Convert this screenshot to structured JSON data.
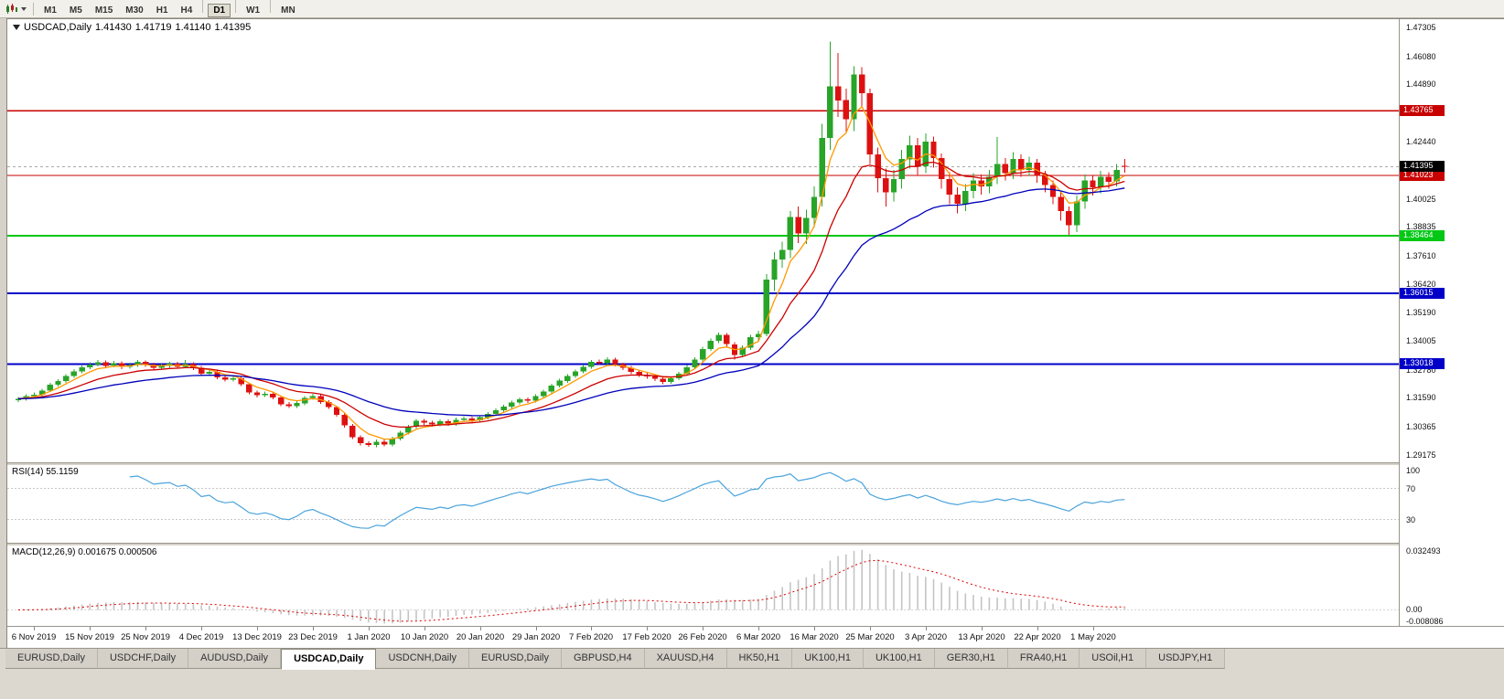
{
  "toolbar": {
    "timeframes": [
      {
        "label": "M1",
        "active": false
      },
      {
        "label": "M5",
        "active": false
      },
      {
        "label": "M15",
        "active": false
      },
      {
        "label": "M30",
        "active": false
      },
      {
        "label": "H1",
        "active": false
      },
      {
        "label": "H4",
        "active": false
      },
      {
        "label": "D1",
        "active": true
      },
      {
        "label": "W1",
        "active": false
      },
      {
        "label": "MN",
        "active": false
      }
    ]
  },
  "chart_header": {
    "symbol": "USDCAD,Daily",
    "open": "1.41430",
    "high": "1.41719",
    "low": "1.41140",
    "close": "1.41395"
  },
  "colors": {
    "bull": "#28a428",
    "bear": "#dd1111",
    "rsi": "#4aa3dc",
    "macd_hist": "#c4c4c4",
    "macd_signal": "#dd0000",
    "current_line": "#aaaaaa"
  },
  "price_axis": {
    "ticks": [
      "1.47305",
      "1.46080",
      "1.44890",
      "1.42440",
      "1.40025",
      "1.38835",
      "1.37610",
      "1.36420",
      "1.35190",
      "1.34005",
      "1.32780",
      "1.31590",
      "1.30365",
      "1.29175"
    ]
  },
  "hlines": [
    {
      "price": 1.43765,
      "label": "1.43765",
      "color": "#c80000",
      "thickness": 1.4
    },
    {
      "price": 1.41023,
      "label": "1.41023",
      "color": "#c80000",
      "thickness": 1.4
    },
    {
      "price": 1.38464,
      "label": "1.38464",
      "color": "#00c814",
      "thickness": 2
    },
    {
      "price": 1.36015,
      "label": "1.36015",
      "color": "#0000c8",
      "thickness": 2
    },
    {
      "price": 1.33018,
      "label": "1.33018",
      "color": "#0000c8",
      "thickness": 2
    }
  ],
  "current_price": {
    "value": 1.41395,
    "label": "1.41395",
    "badge_color": "#000000"
  },
  "chart_data": {
    "type": "candlestick",
    "symbol": "USDCAD",
    "timeframe": "Daily",
    "y_range": [
      1.2885,
      1.4765
    ],
    "x_tick_labels": [
      "6 Nov 2019",
      "15 Nov 2019",
      "25 Nov 2019",
      "4 Dec 2019",
      "13 Dec 2019",
      "23 Dec 2019",
      "1 Jan 2020",
      "10 Jan 2020",
      "20 Jan 2020",
      "29 Jan 2020",
      "7 Feb 2020",
      "17 Feb 2020",
      "26 Feb 2020",
      "6 Mar 2020",
      "16 Mar 2020",
      "25 Mar 2020",
      "3 Apr 2020",
      "13 Apr 2020",
      "22 Apr 2020",
      "1 May 2020"
    ],
    "x_tick_bar_indices": [
      2,
      9,
      16,
      23,
      30,
      37,
      44,
      51,
      58,
      65,
      72,
      79,
      86,
      93,
      100,
      107,
      114,
      121,
      128,
      135
    ],
    "moving_averages": [
      {
        "name": "fast",
        "type": "ema",
        "period": 5,
        "color": "#ff9900"
      },
      {
        "name": "medium",
        "type": "ema",
        "period": 13,
        "color": "#cc0000"
      },
      {
        "name": "slow",
        "type": "ema",
        "period": 30,
        "color": "#0000bb"
      }
    ],
    "indicators": [
      {
        "name": "RSI",
        "label": "RSI(14) 55.1159",
        "value": 55.1159,
        "period": 14,
        "range": [
          0,
          100
        ],
        "levels": [
          70,
          30
        ],
        "axis_labels": [
          "100",
          "70",
          "30"
        ]
      },
      {
        "name": "MACD",
        "label": "MACD(12,26,9) 0.001675 0.000506",
        "values": [
          0.001675,
          0.000506
        ],
        "params": [
          12,
          26,
          9
        ],
        "range": [
          -0.008086,
          0.032493
        ],
        "axis_labels": [
          "0.032493",
          "0.00",
          "-0.008086"
        ]
      }
    ],
    "candles": [
      [
        1.3148,
        1.3163,
        1.314,
        1.3155
      ],
      [
        1.3155,
        1.3174,
        1.3147,
        1.3166
      ],
      [
        1.3166,
        1.3181,
        1.3158,
        1.3172
      ],
      [
        1.3172,
        1.3198,
        1.3164,
        1.319
      ],
      [
        1.319,
        1.3222,
        1.3183,
        1.3214
      ],
      [
        1.3214,
        1.3238,
        1.3206,
        1.323
      ],
      [
        1.323,
        1.326,
        1.3222,
        1.3252
      ],
      [
        1.3252,
        1.328,
        1.3244,
        1.3271
      ],
      [
        1.3271,
        1.3296,
        1.3263,
        1.3288
      ],
      [
        1.3288,
        1.3309,
        1.328,
        1.33
      ],
      [
        1.33,
        1.3319,
        1.3292,
        1.331
      ],
      [
        1.331,
        1.3318,
        1.3286,
        1.3295
      ],
      [
        1.3295,
        1.3315,
        1.3288,
        1.3306
      ],
      [
        1.3306,
        1.3313,
        1.3281,
        1.329
      ],
      [
        1.329,
        1.3307,
        1.3282,
        1.3298
      ],
      [
        1.3298,
        1.332,
        1.329,
        1.3311
      ],
      [
        1.3311,
        1.3318,
        1.3291,
        1.33
      ],
      [
        1.33,
        1.3308,
        1.3277,
        1.3286
      ],
      [
        1.3286,
        1.3304,
        1.3278,
        1.3295
      ],
      [
        1.3295,
        1.3312,
        1.3287,
        1.3303
      ],
      [
        1.3303,
        1.3311,
        1.3283,
        1.3291
      ],
      [
        1.3291,
        1.332,
        1.3284,
        1.3301
      ],
      [
        1.3301,
        1.3309,
        1.3277,
        1.3286
      ],
      [
        1.3286,
        1.3293,
        1.3252,
        1.3261
      ],
      [
        1.3261,
        1.3278,
        1.3253,
        1.3269
      ],
      [
        1.3269,
        1.3276,
        1.3238,
        1.3246
      ],
      [
        1.3246,
        1.3254,
        1.3228,
        1.3236
      ],
      [
        1.3236,
        1.325,
        1.3228,
        1.3241
      ],
      [
        1.3241,
        1.3248,
        1.3208,
        1.3216
      ],
      [
        1.3216,
        1.3223,
        1.3173,
        1.3181
      ],
      [
        1.3181,
        1.3189,
        1.3161,
        1.317
      ],
      [
        1.317,
        1.3185,
        1.3162,
        1.3176
      ],
      [
        1.3176,
        1.3183,
        1.3152,
        1.3161
      ],
      [
        1.3161,
        1.3168,
        1.3123,
        1.3131
      ],
      [
        1.3131,
        1.314,
        1.3115,
        1.3123
      ],
      [
        1.3123,
        1.3145,
        1.3116,
        1.3136
      ],
      [
        1.3136,
        1.3166,
        1.3128,
        1.3158
      ],
      [
        1.3158,
        1.3175,
        1.315,
        1.3166
      ],
      [
        1.3166,
        1.3173,
        1.3133,
        1.3141
      ],
      [
        1.3141,
        1.3148,
        1.3111,
        1.3119
      ],
      [
        1.3119,
        1.3126,
        1.3078,
        1.3086
      ],
      [
        1.3086,
        1.3093,
        1.3033,
        1.3041
      ],
      [
        1.3041,
        1.3048,
        1.2983,
        1.2991
      ],
      [
        1.2991,
        1.2999,
        1.2957,
        1.2966
      ],
      [
        1.2966,
        1.2975,
        1.295,
        1.2959
      ],
      [
        1.2959,
        1.2982,
        1.2949,
        1.2973
      ],
      [
        1.2973,
        1.2981,
        1.2952,
        1.2961
      ],
      [
        1.2961,
        1.2994,
        1.2953,
        1.2986
      ],
      [
        1.2986,
        1.3019,
        1.2978,
        1.3011
      ],
      [
        1.3011,
        1.3044,
        1.3003,
        1.3036
      ],
      [
        1.3036,
        1.3069,
        1.3028,
        1.3061
      ],
      [
        1.3061,
        1.307,
        1.3044,
        1.3053
      ],
      [
        1.3053,
        1.3061,
        1.3037,
        1.3046
      ],
      [
        1.3046,
        1.3068,
        1.3038,
        1.3059
      ],
      [
        1.3059,
        1.3067,
        1.304,
        1.3049
      ],
      [
        1.3049,
        1.3074,
        1.3041,
        1.3066
      ],
      [
        1.3066,
        1.308,
        1.3058,
        1.3071
      ],
      [
        1.3071,
        1.3079,
        1.3054,
        1.3063
      ],
      [
        1.3063,
        1.3085,
        1.3055,
        1.3076
      ],
      [
        1.3076,
        1.3099,
        1.3068,
        1.3091
      ],
      [
        1.3091,
        1.3114,
        1.3083,
        1.3106
      ],
      [
        1.3106,
        1.3129,
        1.3098,
        1.3121
      ],
      [
        1.3121,
        1.3147,
        1.3113,
        1.3139
      ],
      [
        1.3139,
        1.3161,
        1.3131,
        1.3153
      ],
      [
        1.3153,
        1.3161,
        1.3137,
        1.3146
      ],
      [
        1.3146,
        1.3174,
        1.3138,
        1.3166
      ],
      [
        1.3166,
        1.3194,
        1.3158,
        1.3186
      ],
      [
        1.3186,
        1.3219,
        1.3178,
        1.3211
      ],
      [
        1.3211,
        1.3239,
        1.3203,
        1.3231
      ],
      [
        1.3231,
        1.3259,
        1.3223,
        1.3251
      ],
      [
        1.3251,
        1.3279,
        1.3243,
        1.3271
      ],
      [
        1.3271,
        1.3299,
        1.3263,
        1.3291
      ],
      [
        1.3291,
        1.3319,
        1.3283,
        1.3311
      ],
      [
        1.3311,
        1.3322,
        1.3297,
        1.3306
      ],
      [
        1.3306,
        1.333,
        1.3298,
        1.3321
      ],
      [
        1.3321,
        1.3328,
        1.3292,
        1.3301
      ],
      [
        1.3301,
        1.3308,
        1.3277,
        1.3286
      ],
      [
        1.3286,
        1.3293,
        1.326,
        1.3269
      ],
      [
        1.3269,
        1.3276,
        1.3247,
        1.3256
      ],
      [
        1.3256,
        1.3264,
        1.324,
        1.3249
      ],
      [
        1.3249,
        1.3256,
        1.323,
        1.3239
      ],
      [
        1.3239,
        1.3246,
        1.3217,
        1.3226
      ],
      [
        1.3226,
        1.3249,
        1.3218,
        1.3241
      ],
      [
        1.3241,
        1.3269,
        1.3233,
        1.3261
      ],
      [
        1.3261,
        1.3297,
        1.3253,
        1.3289
      ],
      [
        1.3289,
        1.333,
        1.3281,
        1.3321
      ],
      [
        1.3321,
        1.3375,
        1.3313,
        1.3366
      ],
      [
        1.3366,
        1.341,
        1.3358,
        1.3401
      ],
      [
        1.3401,
        1.3436,
        1.3391,
        1.3426
      ],
      [
        1.3426,
        1.3434,
        1.3376,
        1.3386
      ],
      [
        1.3386,
        1.3394,
        1.3322,
        1.3341
      ],
      [
        1.3341,
        1.3381,
        1.3331,
        1.3371
      ],
      [
        1.3371,
        1.3426,
        1.3361,
        1.3416
      ],
      [
        1.3416,
        1.3444,
        1.3401,
        1.3429
      ],
      [
        1.3429,
        1.3684,
        1.3419,
        1.3661
      ],
      [
        1.3661,
        1.3776,
        1.3611,
        1.3746
      ],
      [
        1.3746,
        1.3821,
        1.3711,
        1.3786
      ],
      [
        1.3786,
        1.3951,
        1.3751,
        1.3926
      ],
      [
        1.3926,
        1.3971,
        1.3816,
        1.3856
      ],
      [
        1.3856,
        1.3956,
        1.3811,
        1.3921
      ],
      [
        1.3921,
        1.4056,
        1.3881,
        1.4011
      ],
      [
        1.4011,
        1.4321,
        1.3971,
        1.4261
      ],
      [
        1.4261,
        1.467,
        1.4211,
        1.4481
      ],
      [
        1.4481,
        1.4621,
        1.4351,
        1.4421
      ],
      [
        1.4421,
        1.4471,
        1.4286,
        1.4341
      ],
      [
        1.4341,
        1.4566,
        1.4291,
        1.4531
      ],
      [
        1.4531,
        1.4561,
        1.4391,
        1.4451
      ],
      [
        1.4451,
        1.4471,
        1.4151,
        1.4191
      ],
      [
        1.4191,
        1.4221,
        1.4031,
        1.4091
      ],
      [
        1.4091,
        1.4131,
        1.3971,
        1.4031
      ],
      [
        1.4031,
        1.4126,
        1.3991,
        1.4086
      ],
      [
        1.4086,
        1.4211,
        1.4046,
        1.4171
      ],
      [
        1.4171,
        1.4271,
        1.4131,
        1.4231
      ],
      [
        1.4231,
        1.4261,
        1.4101,
        1.4141
      ],
      [
        1.4141,
        1.4281,
        1.4111,
        1.4246
      ],
      [
        1.4246,
        1.4266,
        1.4136,
        1.4176
      ],
      [
        1.4176,
        1.4196,
        1.4046,
        1.4086
      ],
      [
        1.4086,
        1.4116,
        1.3981,
        1.4021
      ],
      [
        1.4021,
        1.4051,
        1.3941,
        1.3981
      ],
      [
        1.3981,
        1.4066,
        1.3951,
        1.4036
      ],
      [
        1.4036,
        1.4111,
        1.4006,
        1.4081
      ],
      [
        1.4081,
        1.4106,
        1.4021,
        1.4056
      ],
      [
        1.4056,
        1.4126,
        1.4026,
        1.4096
      ],
      [
        1.4096,
        1.4265,
        1.4066,
        1.4151
      ],
      [
        1.4151,
        1.4176,
        1.4081,
        1.4111
      ],
      [
        1.4111,
        1.4201,
        1.4086,
        1.4171
      ],
      [
        1.4171,
        1.4191,
        1.4096,
        1.4126
      ],
      [
        1.4126,
        1.4181,
        1.4101,
        1.4156
      ],
      [
        1.4156,
        1.4171,
        1.4071,
        1.4101
      ],
      [
        1.4101,
        1.4121,
        1.4031,
        1.4061
      ],
      [
        1.4061,
        1.4081,
        1.3981,
        1.4011
      ],
      [
        1.4011,
        1.4031,
        1.3911,
        1.3951
      ],
      [
        1.3951,
        1.3971,
        1.3851,
        1.3891
      ],
      [
        1.3891,
        1.4016,
        1.3861,
        1.3991
      ],
      [
        1.3991,
        1.4106,
        1.3961,
        1.4081
      ],
      [
        1.4081,
        1.4101,
        1.4016,
        1.4051
      ],
      [
        1.4051,
        1.4121,
        1.4026,
        1.4096
      ],
      [
        1.4096,
        1.4116,
        1.4046,
        1.4076
      ],
      [
        1.4076,
        1.4151,
        1.4056,
        1.4126
      ],
      [
        1.4143,
        1.41719,
        1.4114,
        1.41395
      ]
    ]
  },
  "tabs": [
    {
      "label": "EURUSD,Daily",
      "active": false
    },
    {
      "label": "USDCHF,Daily",
      "active": false
    },
    {
      "label": "AUDUSD,Daily",
      "active": false
    },
    {
      "label": "USDCAD,Daily",
      "active": true
    },
    {
      "label": "USDCNH,Daily",
      "active": false
    },
    {
      "label": "EURUSD,Daily",
      "active": false
    },
    {
      "label": "GBPUSD,H4",
      "active": false
    },
    {
      "label": "XAUUSD,H4",
      "active": false
    },
    {
      "label": "HK50,H1",
      "active": false
    },
    {
      "label": "UK100,H1",
      "active": false
    },
    {
      "label": "UK100,H1",
      "active": false
    },
    {
      "label": "GER30,H1",
      "active": false
    },
    {
      "label": "FRA40,H1",
      "active": false
    },
    {
      "label": "USOil,H1",
      "active": false
    },
    {
      "label": "USDJPY,H1",
      "active": false
    }
  ]
}
